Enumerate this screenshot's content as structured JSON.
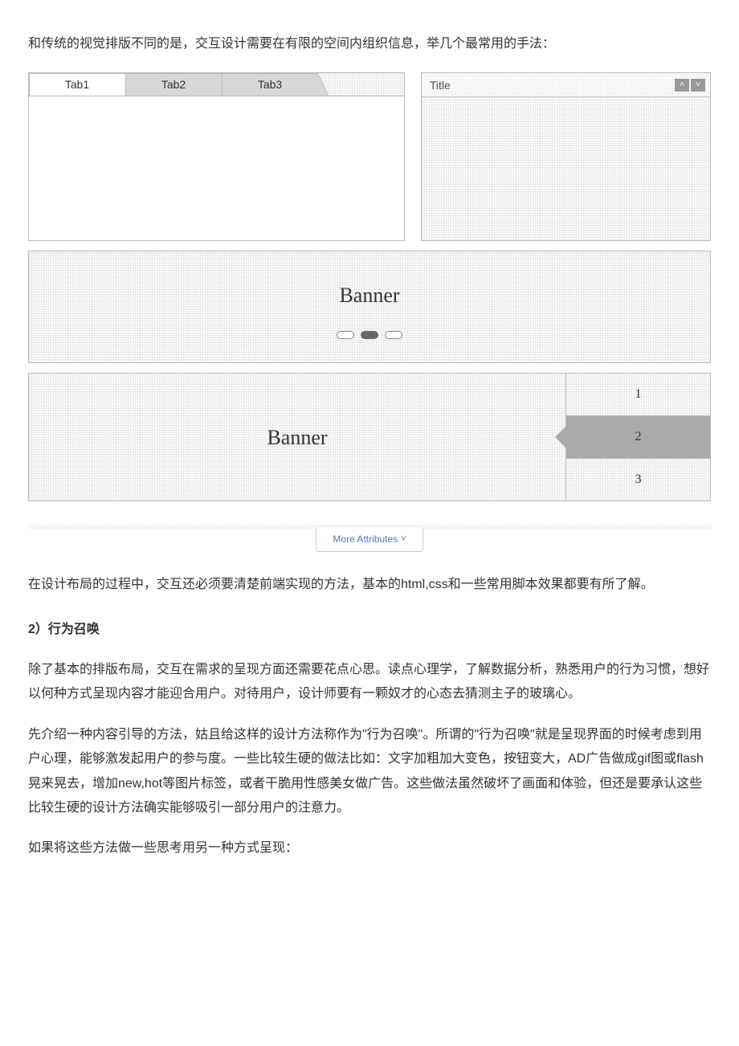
{
  "intro_para": "和传统的视觉排版不同的是，交互设计需要在有限的空间内组织信息，举几个最常用的手法：",
  "diagram": {
    "tabs": {
      "items": [
        "Tab1",
        "Tab2",
        "Tab3"
      ],
      "active_index": 0,
      "border_color": "#bbbbbb",
      "inactive_bg": "#d8d8d8",
      "active_bg": "#ffffff"
    },
    "title_panel": {
      "label": "Title",
      "up_icon": "˄",
      "down_icon": "˅",
      "btn_bg": "#9a9a9a"
    },
    "banner_dots": {
      "label": "Banner",
      "count": 3,
      "active_index": 1,
      "dot_border": "#888888",
      "dot_active_bg": "#666666"
    },
    "banner_tabs": {
      "label": "Banner",
      "items": [
        "1",
        "2",
        "3"
      ],
      "active_index": 1,
      "active_bg": "#aaaaaa"
    },
    "more_attributes": {
      "label": "More Attributes",
      "chevron": "˅",
      "link_color": "#4a7db5"
    }
  },
  "para2": "在设计布局的过程中，交互还必须要清楚前端实现的方法，基本的html,css和一些常用脚本效果都要有所了解。",
  "heading_2": "2）行为召唤",
  "para3": "除了基本的排版布局，交互在需求的呈现方面还需要花点心思。读点心理学，了解数据分析，熟悉用户的行为习惯，想好以何种方式呈现内容才能迎合用户。对待用户，设计师要有一颗奴才的心态去猜测主子的玻璃心。",
  "para4": "先介绍一种内容引导的方法，姑且给这样的设计方法称作为\"行为召唤\"。所谓的\"行为召唤\"就是呈现界面的时候考虑到用户心理，能够激发起用户的参与度。一些比较生硬的做法比如：文字加粗加大变色，按钮变大，AD广告做成gif图或flash晃来晃去，增加new,hot等图片标签，或者干脆用性感美女做广告。这些做法虽然破坏了画面和体验，但还是要承认这些比较生硬的设计方法确实能够吸引一部分用户的注意力。",
  "para5": "如果将这些方法做一些思考用另一种方式呈现："
}
